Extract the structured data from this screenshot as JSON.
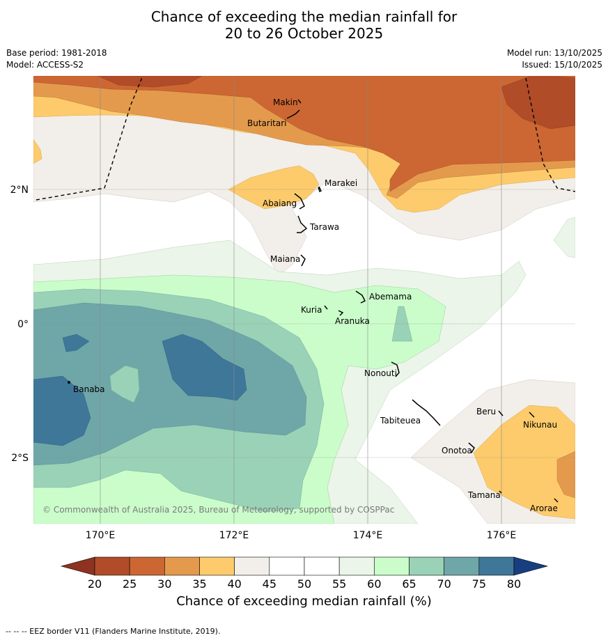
{
  "title_line1": "Chance of exceeding the median rainfall for",
  "title_line2": "20 to 26 October 2025",
  "meta": {
    "base_period": "Base period: 1981-2018",
    "model": "Model: ACCESS-S2",
    "model_run": "Model run: 13/10/2025",
    "issued": "Issued: 15/10/2025"
  },
  "axes": {
    "x_ticks": [
      "170°E",
      "172°E",
      "174°E",
      "176°E"
    ],
    "y_ticks": [
      "2°N",
      "0°",
      "2°S"
    ]
  },
  "places": {
    "makin": "Makin",
    "butaritari": "Butaritari",
    "marakei": "Marakei",
    "abaiang": "Abaiang",
    "tarawa": "Tarawa",
    "maiana": "Maiana",
    "abemama": "Abemama",
    "kuria": "Kuria",
    "aranuka": "Aranuka",
    "nonouti": "Nonouti",
    "banaba": "Banaba",
    "beru": "Beru",
    "nikunau": "Nikunau",
    "tabiteuea": "Tabiteuea",
    "onotoa": "Onotoa",
    "tamana": "Tamana",
    "arorae": "Arorae"
  },
  "credit": "© Commonwealth of Australia 2025, Bureau of Meteorology, supported by COSPPac",
  "colorbar": {
    "title": "Chance of exceeding median rainfall (%)",
    "ticks": [
      "20",
      "25",
      "30",
      "35",
      "40",
      "45",
      "50",
      "55",
      "60",
      "65",
      "70",
      "75",
      "80"
    ],
    "colors": [
      "#b14c28",
      "#cc6733",
      "#e49a4c",
      "#fdcb6b",
      "#f2eee9",
      "#ffffff",
      "#ffffff",
      "#ebf5e9",
      "#cbfdcb",
      "#9ad2b8",
      "#6fa7a8",
      "#3f7799"
    ],
    "under_color": "#8e3321",
    "over_color": "#173f80"
  },
  "footnote": "--  --  -- EEZ border V11 (Flanders Marine Institute, 2019)."
}
